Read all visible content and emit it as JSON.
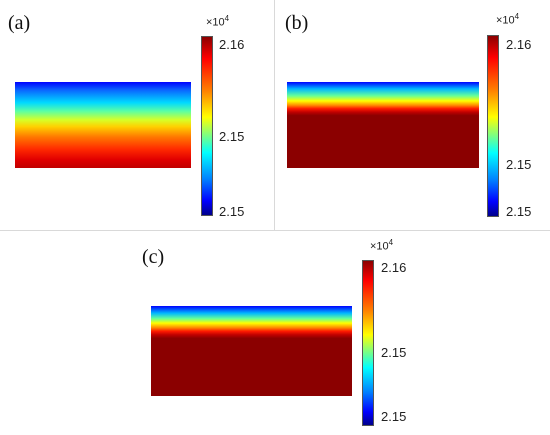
{
  "panels": [
    {
      "label": "(a)",
      "multiplier_base": "×10",
      "multiplier_exp": "4",
      "ticks": {
        "top": "2.16",
        "mid": "2.15",
        "bottom": "2.15"
      }
    },
    {
      "label": "(b)",
      "multiplier_base": "×10",
      "multiplier_exp": "4",
      "ticks": {
        "top": "2.16",
        "mid": "2.15",
        "bottom": "2.15"
      }
    },
    {
      "label": "(c)",
      "multiplier_base": "×10",
      "multiplier_exp": "4",
      "ticks": {
        "top": "2.16",
        "mid": "2.15",
        "bottom": "2.15"
      }
    }
  ],
  "colormap": "jet"
}
